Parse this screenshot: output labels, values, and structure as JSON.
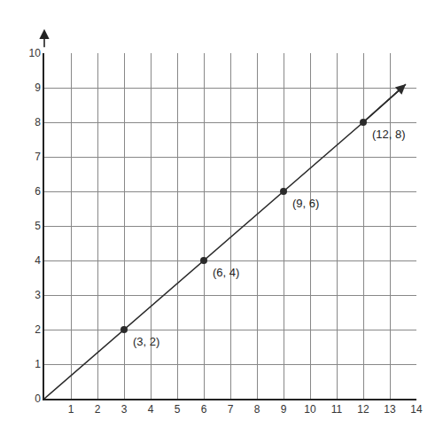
{
  "chart_data": {
    "type": "line",
    "x": [
      0,
      3,
      6,
      9,
      12,
      13.6
    ],
    "values": [
      0,
      2,
      4,
      6,
      8,
      9.1
    ],
    "value_labels": [
      null,
      "(3, 2)",
      "(6, 4)",
      "(9, 6)",
      "(12, 8)",
      null
    ],
    "data_labels": true,
    "color": "#2b2b2b",
    "marker": "circle",
    "xlim": [
      0,
      14
    ],
    "xticks": [
      1,
      2,
      3,
      4,
      5,
      6,
      7,
      8,
      9,
      10,
      11,
      12,
      13,
      14
    ],
    "ylim": [
      0,
      10
    ],
    "yticks": [
      0,
      1,
      2,
      3,
      4,
      5,
      6,
      7,
      8,
      9,
      10
    ],
    "grid": true
  }
}
